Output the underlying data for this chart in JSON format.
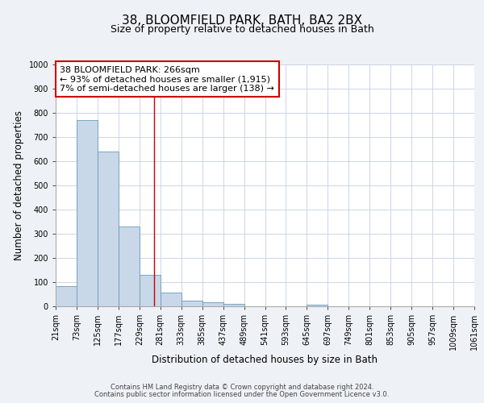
{
  "title": "38, BLOOMFIELD PARK, BATH, BA2 2BX",
  "subtitle": "Size of property relative to detached houses in Bath",
  "xlabel": "Distribution of detached houses by size in Bath",
  "ylabel": "Number of detached properties",
  "bin_edges": [
    21,
    73,
    125,
    177,
    229,
    281,
    333,
    385,
    437,
    489,
    541,
    593,
    645,
    697,
    749,
    801,
    853,
    905,
    957,
    1009,
    1061
  ],
  "counts": [
    85,
    770,
    640,
    330,
    130,
    58,
    22,
    17,
    10,
    0,
    0,
    0,
    8,
    0,
    0,
    0,
    0,
    0,
    0,
    0
  ],
  "bar_color": "#c8d8e8",
  "bar_edge_color": "#6a9ab8",
  "vline_x": 266,
  "vline_color": "#cc0000",
  "annotation_line1": "38 BLOOMFIELD PARK: 266sqm",
  "annotation_line2": "← 93% of detached houses are smaller (1,915)",
  "annotation_line3": "7% of semi-detached houses are larger (138) →",
  "ylim": [
    0,
    1000
  ],
  "yticks": [
    0,
    100,
    200,
    300,
    400,
    500,
    600,
    700,
    800,
    900,
    1000
  ],
  "background_color": "#eef2f7",
  "plot_background": "#ffffff",
  "grid_color": "#c5cfe0",
  "footer_line1": "Contains HM Land Registry data © Crown copyright and database right 2024.",
  "footer_line2": "Contains public sector information licensed under the Open Government Licence v3.0.",
  "title_fontsize": 11,
  "subtitle_fontsize": 9,
  "tick_label_fontsize": 7,
  "axis_label_fontsize": 8.5,
  "annotation_fontsize": 8,
  "footer_fontsize": 6
}
